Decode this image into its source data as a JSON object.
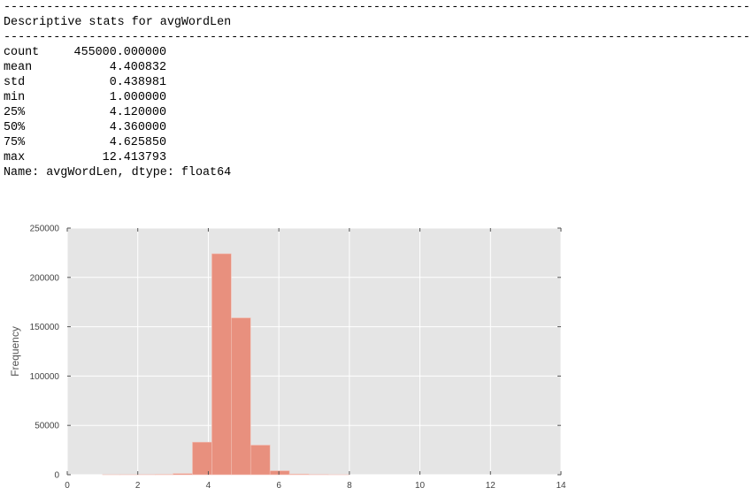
{
  "console": {
    "rule": "------------------------------------------------------------------------------------------------------------------------------------------------------------",
    "title": "Descriptive stats for avgWordLen",
    "stats": [
      {
        "name": "count",
        "value": "455000.000000"
      },
      {
        "name": "mean",
        "value": "4.400832"
      },
      {
        "name": "std",
        "value": "0.438981"
      },
      {
        "name": "min",
        "value": "1.000000"
      },
      {
        "name": "25%",
        "value": "4.120000"
      },
      {
        "name": "50%",
        "value": "4.360000"
      },
      {
        "name": "75%",
        "value": "4.625850"
      },
      {
        "name": "max",
        "value": "12.413793"
      }
    ],
    "footer": "Name: avgWordLen, dtype: float64"
  },
  "chart_data": {
    "type": "bar",
    "title": "",
    "xlabel": "",
    "ylabel": "Frequency",
    "xlim": [
      0,
      14
    ],
    "ylim": [
      0,
      250000
    ],
    "xticks": [
      0,
      2,
      4,
      6,
      8,
      10,
      12,
      14
    ],
    "yticks": [
      0,
      50000,
      100000,
      150000,
      200000,
      250000
    ],
    "grid": true,
    "bar_color": "#e8907e",
    "background_color": "#e5e5e5",
    "bins": [
      {
        "x0": 0.5,
        "x1": 1.0,
        "value": 0
      },
      {
        "x0": 1.0,
        "x1": 1.5,
        "value": 80
      },
      {
        "x0": 1.5,
        "x1": 2.0,
        "value": 120
      },
      {
        "x0": 2.0,
        "x1": 2.5,
        "value": 200
      },
      {
        "x0": 2.5,
        "x1": 3.0,
        "value": 400
      },
      {
        "x0": 3.0,
        "x1": 3.55,
        "value": 1200
      },
      {
        "x0": 3.55,
        "x1": 4.1,
        "value": 33000
      },
      {
        "x0": 4.1,
        "x1": 4.65,
        "value": 224000
      },
      {
        "x0": 4.65,
        "x1": 5.2,
        "value": 159000
      },
      {
        "x0": 5.2,
        "x1": 5.75,
        "value": 30000
      },
      {
        "x0": 5.75,
        "x1": 6.3,
        "value": 4000
      },
      {
        "x0": 6.3,
        "x1": 6.85,
        "value": 700
      },
      {
        "x0": 6.85,
        "x1": 7.4,
        "value": 250
      },
      {
        "x0": 7.4,
        "x1": 8.0,
        "value": 60
      }
    ]
  }
}
